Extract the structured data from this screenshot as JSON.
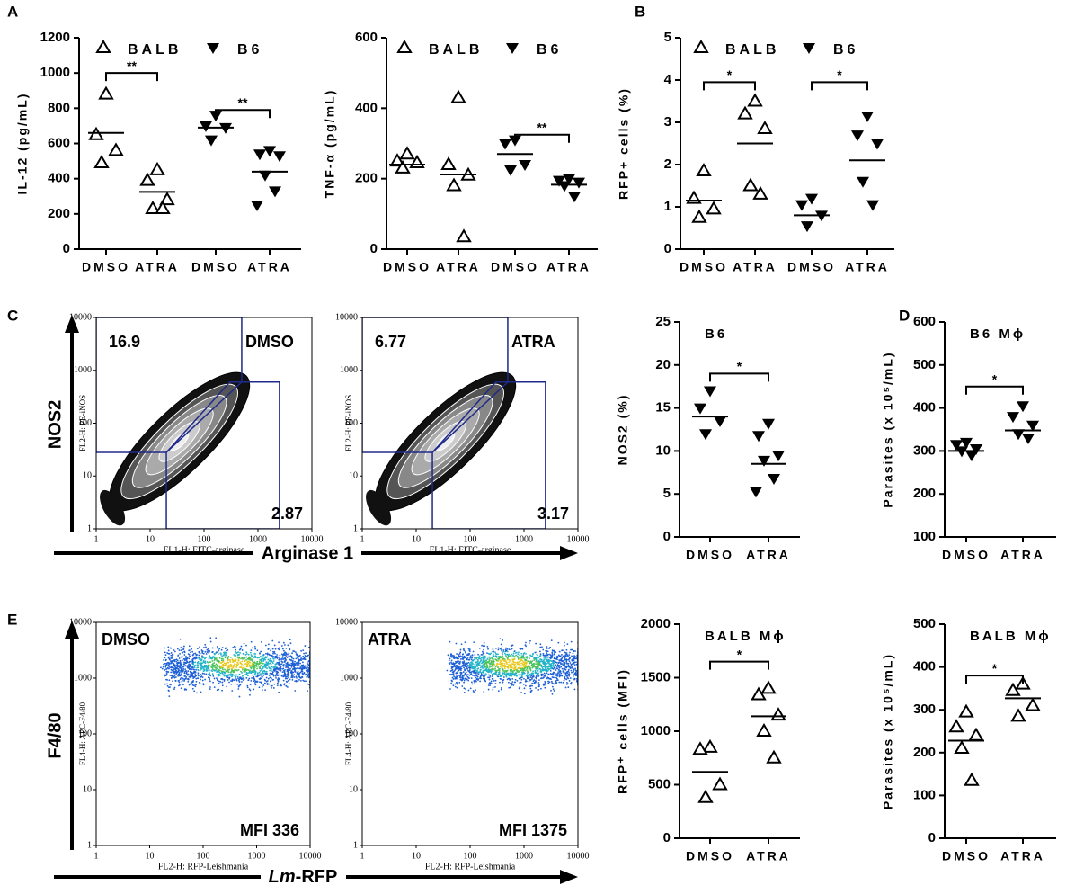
{
  "panels": [
    "A",
    "B",
    "C",
    "D",
    "E"
  ],
  "axis_titles": [
    {
      "y": "NOS2",
      "x": "Arginase 1"
    },
    {
      "y": "F4/80",
      "x_italic": "Lm",
      "x": "-RFP"
    }
  ],
  "chart_data": [
    {
      "type": "dot",
      "ylabel": "IL-12 (pg/mL)",
      "ylim": [
        0,
        1200
      ],
      "yticks": [
        0,
        200,
        400,
        600,
        800,
        1000,
        1200
      ],
      "categories": [
        "DMSO",
        "ATRA",
        "DMSO",
        "ATRA"
      ],
      "series": [
        {
          "name": "BALB",
          "marker": "up-open",
          "values": [
            [
              880,
              650,
              560,
              490
            ],
            [
              450,
              390,
              280,
              230,
              230
            ]
          ],
          "medians": [
            660,
            325
          ],
          "significance": {
            "label": "**",
            "y": 1000
          }
        },
        {
          "name": "B6",
          "marker": "down-filled",
          "values": [
            [
              760,
              700,
              690,
              620
            ],
            [
              560,
              540,
              530,
              420,
              330,
              250
            ]
          ],
          "medians": [
            690,
            440
          ],
          "significance": {
            "label": "**",
            "y": 790
          }
        }
      ]
    },
    {
      "type": "dot",
      "ylabel": "TNF-α (pg/mL)",
      "ylim": [
        0,
        600
      ],
      "yticks": [
        0,
        200,
        400,
        600
      ],
      "categories": [
        "DMSO",
        "ATRA",
        "DMSO",
        "ATRA"
      ],
      "series": [
        {
          "name": "BALB",
          "marker": "up-open",
          "values": [
            [
              270,
              250,
              245,
              230
            ],
            [
              430,
              240,
              210,
              180,
              35
            ]
          ],
          "medians": [
            240,
            212
          ]
        },
        {
          "name": "B6",
          "marker": "down-filled",
          "values": [
            [
              310,
              300,
              240,
              225
            ],
            [
              200,
              195,
              190,
              180,
              150
            ]
          ],
          "medians": [
            270,
            183
          ],
          "significance": {
            "label": "**",
            "y": 325
          }
        }
      ]
    },
    {
      "type": "dot",
      "ylabel": "RFP+ cells (%)",
      "ylim": [
        0,
        5
      ],
      "yticks": [
        0,
        1,
        2,
        3,
        4,
        5
      ],
      "categories": [
        "DMSO",
        "ATRA",
        "DMSO",
        "ATRA"
      ],
      "series": [
        {
          "name": "BALB",
          "marker": "up-open",
          "values": [
            [
              1.85,
              1.2,
              0.95,
              0.75
            ],
            [
              3.5,
              3.2,
              2.85,
              1.5,
              1.3
            ]
          ],
          "medians": [
            1.15,
            2.5
          ],
          "significance": {
            "label": "*",
            "y": 3.95
          }
        },
        {
          "name": "B6",
          "marker": "down-filled",
          "values": [
            [
              1.2,
              1.05,
              0.8,
              0.55
            ],
            [
              3.15,
              2.7,
              2.5,
              1.6,
              1.05
            ]
          ],
          "medians": [
            0.8,
            2.1
          ],
          "significance": {
            "label": "*",
            "y": 3.95
          }
        }
      ]
    },
    {
      "type": "flow",
      "style": "contour",
      "condition": "DMSO",
      "xlabel": "FL1-H: FITC-arginase",
      "ylabel": "FL2-H: PE-iNOS",
      "log": true,
      "xlim": [
        1,
        10000
      ],
      "ylim": [
        1,
        10000
      ],
      "xticks": [
        1,
        10,
        100,
        1000,
        10000
      ],
      "yticks": [
        1,
        10,
        100,
        1000,
        10000
      ],
      "gates": [
        16.9,
        2.87
      ]
    },
    {
      "type": "flow",
      "style": "contour",
      "condition": "ATRA",
      "xlabel": "FL1-H: FITC-arginase",
      "ylabel": "FL2-H: PE-iNOS",
      "log": true,
      "xlim": [
        1,
        10000
      ],
      "ylim": [
        1,
        10000
      ],
      "xticks": [
        1,
        10,
        100,
        1000,
        10000
      ],
      "yticks": [
        1,
        10,
        100,
        1000,
        10000
      ],
      "gates": [
        6.77,
        3.17
      ]
    },
    {
      "type": "dot",
      "title": "B6",
      "ylabel": "NOS2 (%)",
      "ylim": [
        0,
        25
      ],
      "yticks": [
        0,
        5,
        10,
        15,
        20,
        25
      ],
      "categories": [
        "DMSO",
        "ATRA"
      ],
      "series": [
        {
          "marker": "down-filled",
          "values": [
            [
              17,
              15,
              13.5,
              12
            ],
            [
              13.2,
              11.8,
              9.5,
              8.9,
              6.8,
              5.3
            ]
          ],
          "medians": [
            14,
            8.5
          ],
          "significance": {
            "label": "*",
            "y": 19
          }
        }
      ]
    },
    {
      "type": "dot",
      "title": "B6 Mϕ",
      "ylabel": "Parasites (x 10⁵/mL)",
      "ylim": [
        100,
        600
      ],
      "yticks": [
        100,
        200,
        300,
        400,
        500,
        600
      ],
      "categories": [
        "DMSO",
        "ATRA"
      ],
      "series": [
        {
          "marker": "down-filled",
          "values": [
            [
              320,
              315,
              305,
              300,
              290
            ],
            [
              405,
              380,
              360,
              340,
              330
            ]
          ],
          "medians": [
            300,
            348
          ],
          "significance": {
            "label": "*",
            "y": 450
          }
        }
      ]
    },
    {
      "type": "flow",
      "style": "dots",
      "condition": "DMSO",
      "annotation": "MFI 336",
      "xlabel": "FL2-H: RFP-Leishmania",
      "ylabel": "FL4-H: APC-F4/80",
      "log": true,
      "xlim": [
        1,
        10000
      ],
      "ylim": [
        1,
        10000
      ],
      "xticks": [
        1,
        10,
        100,
        1000,
        10000
      ],
      "yticks": [
        1,
        10,
        100,
        1000,
        10000
      ]
    },
    {
      "type": "flow",
      "style": "dots",
      "condition": "ATRA",
      "annotation": "MFI 1375",
      "xlabel": "FL2-H: RFP-Leishmania",
      "ylabel": "FL4-H: APC-F4/80",
      "log": true,
      "xlim": [
        1,
        10000
      ],
      "ylim": [
        1,
        10000
      ],
      "xticks": [
        1,
        10,
        100,
        1000,
        10000
      ],
      "yticks": [
        1,
        10,
        100,
        1000,
        10000
      ]
    },
    {
      "type": "dot",
      "title": "BALB Mϕ",
      "ylabel": "RFP⁺ cells (MFI)",
      "ylim": [
        0,
        2000
      ],
      "yticks": [
        0,
        500,
        1000,
        1500,
        2000
      ],
      "categories": [
        "DMSO",
        "ATRA"
      ],
      "series": [
        {
          "marker": "up-open",
          "values": [
            [
              850,
              830,
              500,
              380
            ],
            [
              1400,
              1340,
              1150,
              1000,
              750
            ]
          ],
          "medians": [
            620,
            1140
          ],
          "significance": {
            "label": "*",
            "y": 1650
          }
        }
      ]
    },
    {
      "type": "dot",
      "title": "BALB Mϕ",
      "ylabel": "Parasites (x 10⁵/mL)",
      "ylim": [
        0,
        500
      ],
      "yticks": [
        0,
        100,
        200,
        300,
        400,
        500
      ],
      "categories": [
        "DMSO",
        "ATRA"
      ],
      "series": [
        {
          "marker": "up-open",
          "values": [
            [
              295,
              260,
              240,
              210,
              135
            ],
            [
              360,
              345,
              310,
              285
            ]
          ],
          "medians": [
            228,
            327
          ],
          "significance": {
            "label": "*",
            "y": 380
          }
        }
      ]
    }
  ]
}
